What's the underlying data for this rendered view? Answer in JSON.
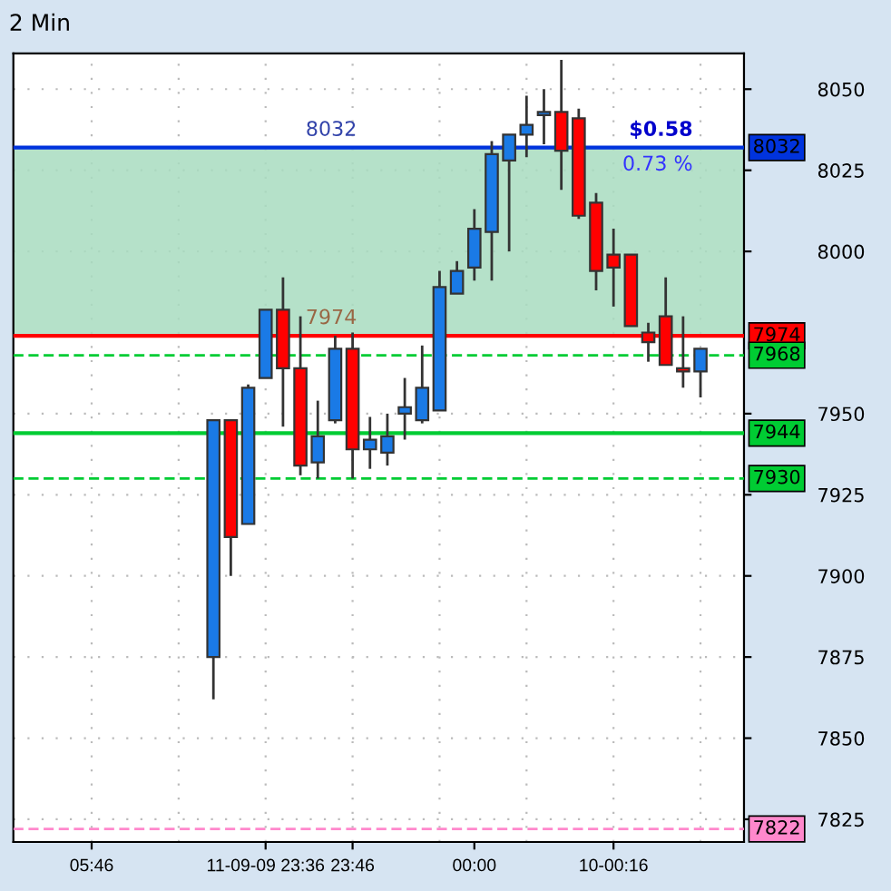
{
  "chart_data": {
    "type": "candlestick",
    "title": "2 Min",
    "categories": [
      null,
      null,
      null,
      null,
      "05:46",
      null,
      null,
      null,
      null,
      null,
      null,
      null,
      null,
      null,
      "11-09-09 23:36",
      null,
      null,
      null,
      null,
      "23:46",
      null,
      null,
      null,
      null,
      null,
      null,
      "00:00",
      null,
      null,
      null,
      null,
      null,
      null,
      null,
      "10-00:16",
      null,
      null,
      null,
      null,
      null,
      null,
      null
    ],
    "ohlc": [
      null,
      null,
      null,
      null,
      null,
      null,
      null,
      null,
      null,
      null,
      null,
      [
        7875,
        7948,
        7862,
        7948
      ],
      [
        7948,
        7948,
        7900,
        7912
      ],
      [
        7916,
        7959,
        7916,
        7958
      ],
      [
        7961,
        7982,
        7961,
        7982
      ],
      [
        7982,
        7992,
        7946,
        7964
      ],
      [
        7964,
        7980,
        7931,
        7934
      ],
      [
        7935,
        7954,
        7930,
        7943
      ],
      [
        7948,
        7974,
        7947,
        7970
      ],
      [
        7970,
        7975,
        7930,
        7939
      ],
      [
        7939,
        7949,
        7933,
        7942
      ],
      [
        7938,
        7950,
        7934,
        7943
      ],
      [
        7950,
        7961,
        7942,
        7952
      ],
      [
        7948,
        7971,
        7947,
        7958
      ],
      [
        7951,
        7994,
        7951,
        7989
      ],
      [
        7987,
        7997,
        7987,
        7994
      ],
      [
        7995,
        8013,
        7991,
        8007
      ],
      [
        8006,
        8034,
        7991,
        8030
      ],
      [
        8028,
        8036,
        8000,
        8036
      ],
      [
        8036,
        8048,
        8029,
        8039
      ],
      [
        8042,
        8050,
        8033,
        8043
      ],
      [
        8043,
        8059,
        8019,
        8031
      ],
      [
        8041,
        8044,
        8010,
        8011
      ],
      [
        8015,
        8018,
        7988,
        7994
      ],
      [
        7999,
        8007,
        7983,
        7995
      ],
      [
        7999,
        7999,
        7977,
        7977
      ],
      [
        7975,
        7978,
        7966,
        7972
      ],
      [
        7980,
        7992,
        7965,
        7965
      ],
      [
        7964,
        7980,
        7958,
        7963
      ],
      [
        7963,
        7970,
        7955,
        7970
      ],
      null,
      null
    ],
    "colors": [
      null,
      null,
      null,
      null,
      null,
      null,
      null,
      null,
      null,
      null,
      null,
      "#1a7ae6",
      "#ff0000",
      "#1a7ae6",
      "#1a7ae6",
      "#ff0000",
      "#ff0000",
      "#1a7ae6",
      "#1a7ae6",
      "#ff0000",
      "#1a7ae6",
      "#1a7ae6",
      "#1a7ae6",
      "#1a7ae6",
      "#1a7ae6",
      "#1a7ae6",
      "#1a7ae6",
      "#1a7ae6",
      "#1a7ae6",
      "#1a7ae6",
      "#1a7ae6",
      "#ff0000",
      "#ff0000",
      "#ff0000",
      "#ff0000",
      "#ff0000",
      "#ff0000",
      "#ff0000",
      "#ff0000",
      "#1a7ae6",
      null,
      null
    ],
    "ylim": [
      7818,
      8061
    ],
    "yticks": [
      8050,
      8025,
      8000,
      7950,
      7925,
      7900,
      7875,
      7850,
      7825
    ],
    "grid": true,
    "ref_lines": [
      {
        "axis": "y",
        "value": 8032,
        "label": "8032",
        "color": "#0033dd",
        "line_style": "solid"
      },
      {
        "axis": "y",
        "value": 7974,
        "label": "7974",
        "color": "#ff0000",
        "line_style": "solid"
      },
      {
        "axis": "y",
        "value": 7968,
        "label": "7968",
        "color": "#00cc33",
        "line_style": "dashed"
      },
      {
        "axis": "y",
        "value": 7944,
        "label": "7944",
        "color": "#00cc33",
        "line_style": "solid"
      },
      {
        "axis": "y",
        "value": 7930,
        "label": "7930",
        "color": "#00cc33",
        "line_style": "dashed"
      },
      {
        "axis": "y",
        "value": 7822,
        "label": "7822",
        "color": "#ff88cc",
        "line_style": "dashed"
      }
    ],
    "bands": [
      {
        "axis": "y",
        "from": 7974,
        "to": 8032,
        "color": "#a8dcc0"
      }
    ],
    "annotations": [
      {
        "text": "$0.58",
        "y": 8032
      },
      {
        "text": "0.73 %",
        "y": 8032
      },
      {
        "text": "8032",
        "y": 8032
      },
      {
        "text": "7974",
        "y": 7974
      }
    ]
  }
}
